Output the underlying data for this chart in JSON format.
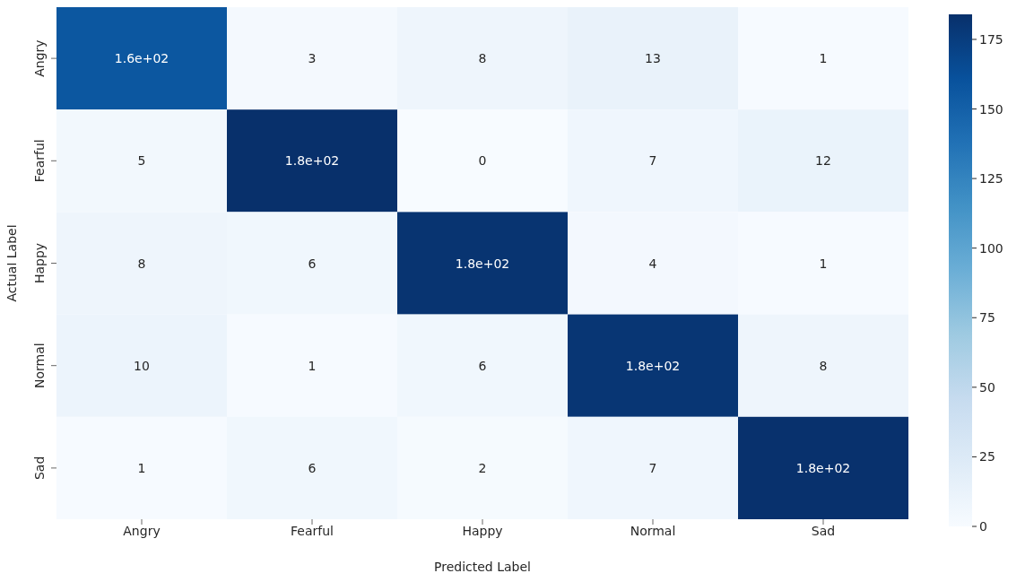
{
  "chart_data": {
    "type": "heatmap",
    "xlabel": "Predicted Label",
    "ylabel": "Actual Label",
    "categories": [
      "Angry",
      "Fearful",
      "Happy",
      "Normal",
      "Sad"
    ],
    "y_categories": [
      "Angry",
      "Fearful",
      "Happy",
      "Normal",
      "Sad"
    ],
    "cells": [
      [
        157,
        3,
        8,
        13,
        1
      ],
      [
        5,
        184,
        0,
        7,
        12
      ],
      [
        8,
        6,
        181,
        4,
        1
      ],
      [
        10,
        1,
        6,
        180,
        8
      ],
      [
        1,
        6,
        2,
        7,
        183
      ]
    ],
    "cell_labels": [
      [
        "1.6e+02",
        "3",
        "8",
        "13",
        "1"
      ],
      [
        "5",
        "1.8e+02",
        "0",
        "7",
        "12"
      ],
      [
        "8",
        "6",
        "1.8e+02",
        "4",
        "1"
      ],
      [
        "10",
        "1",
        "6",
        "1.8e+02",
        "8"
      ],
      [
        "1",
        "6",
        "2",
        "7",
        "1.8e+02"
      ]
    ],
    "clim": [
      0,
      184
    ],
    "cticks": [
      0,
      25,
      50,
      75,
      100,
      125,
      150,
      175
    ]
  }
}
